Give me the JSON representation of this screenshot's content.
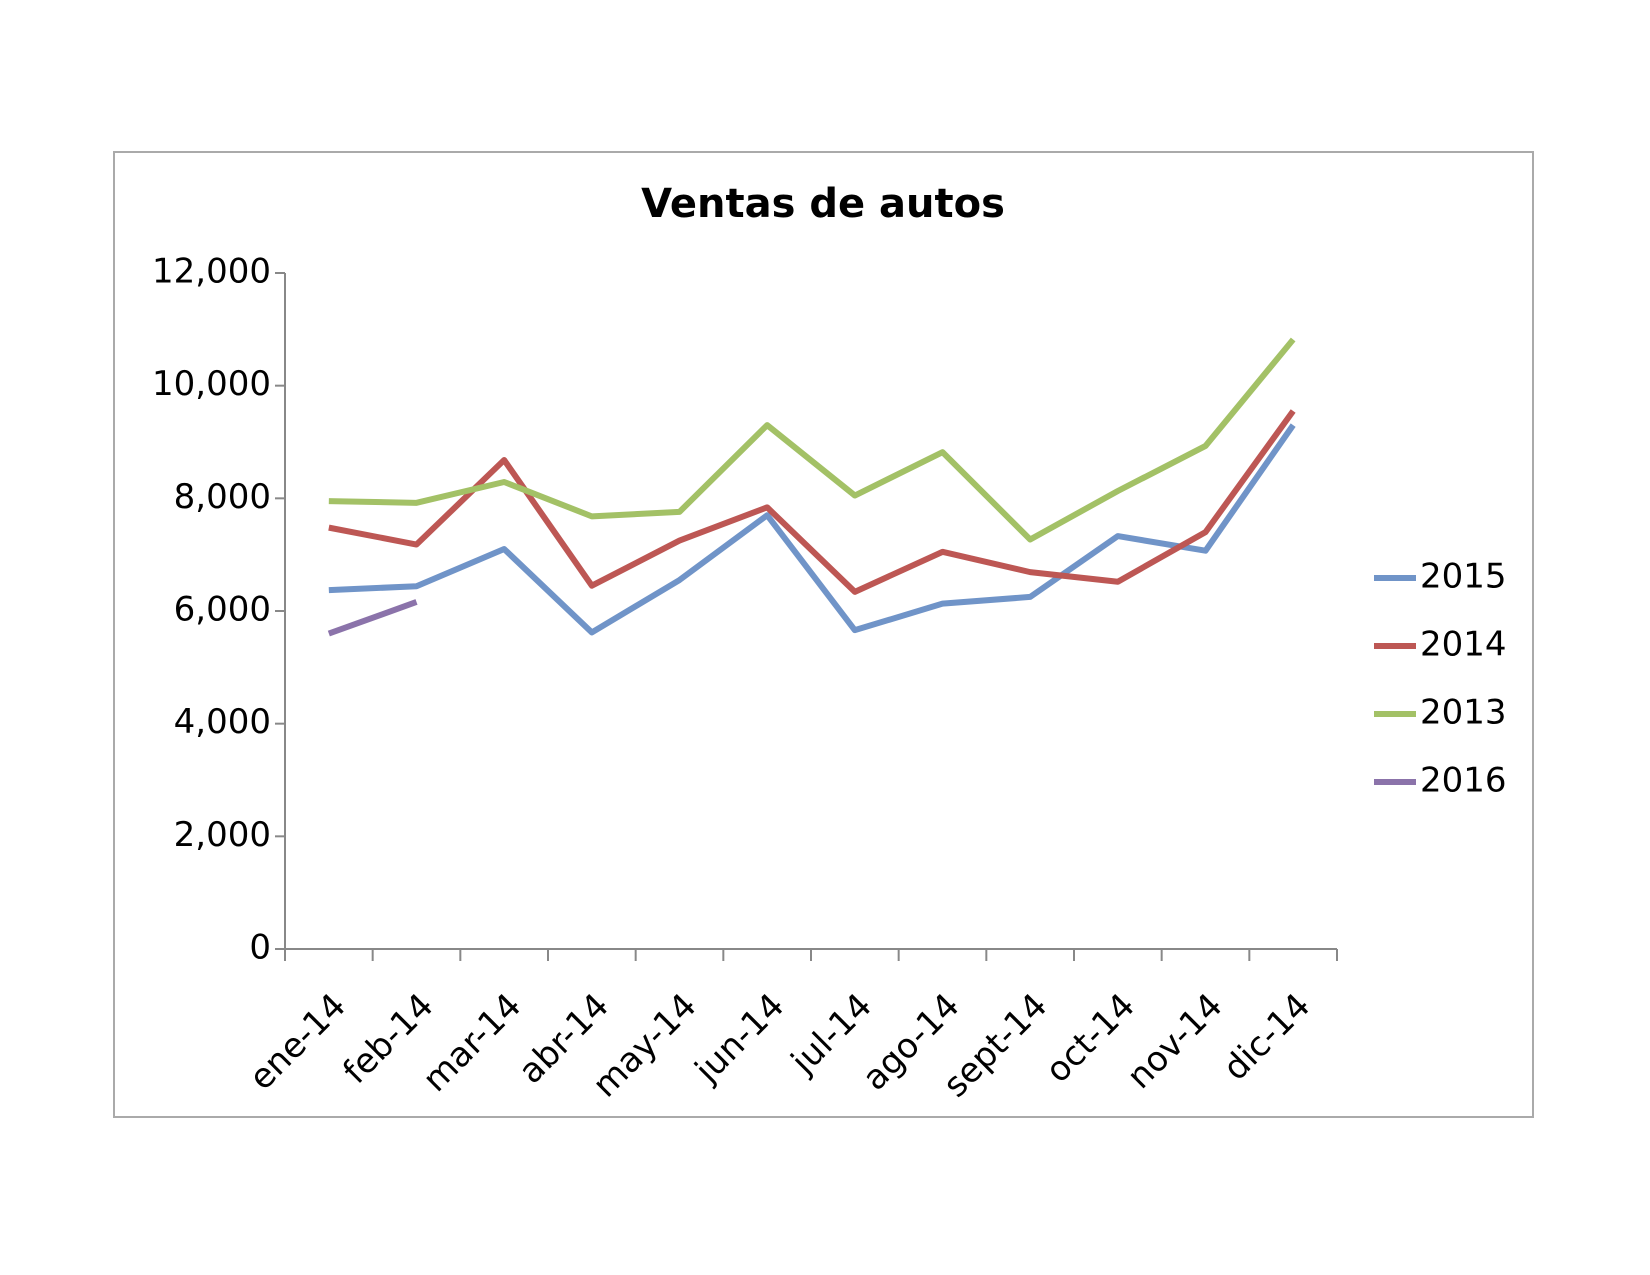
{
  "chart_data": {
    "type": "line",
    "title": "Ventas de autos",
    "categories": [
      "ene-14",
      "feb-14",
      "mar-14",
      "abr-14",
      "may-14",
      "jun-14",
      "jul-14",
      "ago-14",
      "sept-14",
      "oct-14",
      "nov-14",
      "dic-14"
    ],
    "series": [
      {
        "name": "2015",
        "color": "#7094c8",
        "values": [
          6370,
          6440,
          7100,
          5620,
          6550,
          7700,
          5660,
          6130,
          6250,
          7330,
          7070,
          9300
        ]
      },
      {
        "name": "2014",
        "color": "#bd5754",
        "values": [
          7480,
          7180,
          8680,
          6450,
          7250,
          7840,
          6340,
          7050,
          6690,
          6520,
          7400,
          9550
        ]
      },
      {
        "name": "2013",
        "color": "#a3c166",
        "values": [
          7950,
          7920,
          8290,
          7680,
          7760,
          9300,
          8050,
          8820,
          7270,
          8130,
          8930,
          10820
        ]
      },
      {
        "name": "2016",
        "color": "#8b73aa",
        "values": [
          5600,
          6160,
          null,
          null,
          null,
          null,
          null,
          null,
          null,
          null,
          null,
          null
        ]
      }
    ],
    "ylim": [
      0,
      12000
    ],
    "yticks": [
      0,
      {
        "value": 2000,
        "label": "2,000"
      },
      {
        "value": 4000,
        "label": "4,000"
      },
      {
        "value": 6000,
        "label": "6,000"
      },
      {
        "value": 8000,
        "label": "8,000"
      },
      {
        "value": 10000,
        "label": "10,000"
      },
      {
        "value": 12000,
        "label": "12,000"
      }
    ],
    "grid": false,
    "legend": "right"
  }
}
